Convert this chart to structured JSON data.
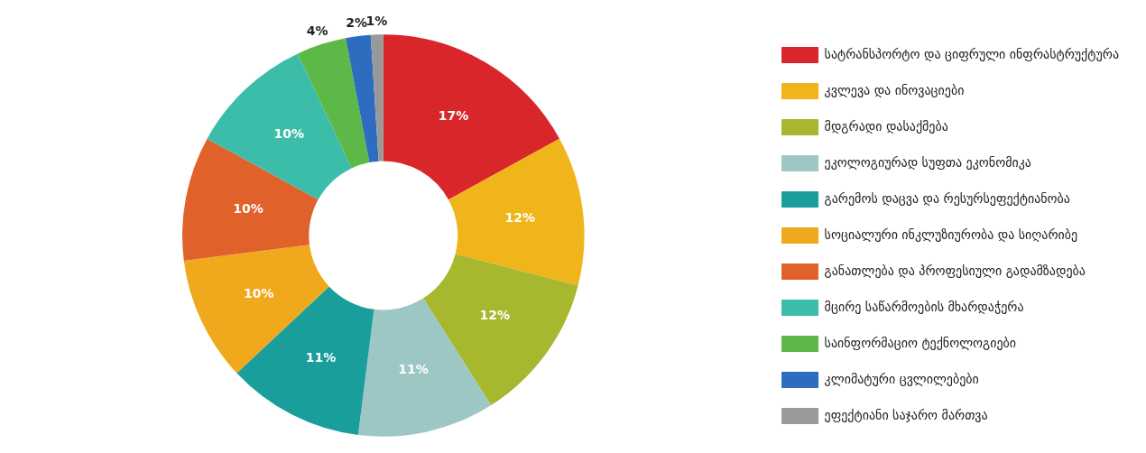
{
  "chart_data": {
    "type": "donut",
    "categories": [
      "სატრანსპორტო და ციფრული ინფრასტრუქტურა",
      "კვლევა და ინოვაციები",
      "მდგრადი დასაქმება",
      "ეკოლოგიურად სუფთა ეკონომიკა",
      "გარემოს დაცვა და რესურსეფექტიანობა",
      "სოციალური ინკლუზიურობა და სიღარიბე",
      "განათლება და პროფესიული გადამზადება",
      "მცირე საწარმოების მხარდაჭერა",
      "საინფორმაციო ტექნოლოგიები",
      "კლიმატური ცვლილებები",
      "ეფექტიანი საჯარო მართვა"
    ],
    "values": [
      17,
      12,
      12,
      11,
      11,
      10,
      10,
      10,
      4,
      2,
      1
    ],
    "value_labels": [
      "17%",
      "12%",
      "12%",
      "11%",
      "11%",
      "10%",
      "10%",
      "10%",
      "4%",
      "2%",
      "1%"
    ],
    "colors": [
      "#d9262b",
      "#f1b51c",
      "#a7b82e",
      "#9cc7c4",
      "#1a9e9c",
      "#f0a81c",
      "#e0622a",
      "#3bbdaa",
      "#5cb947",
      "#2e6cc0",
      "#999999"
    ],
    "legend": "right"
  }
}
